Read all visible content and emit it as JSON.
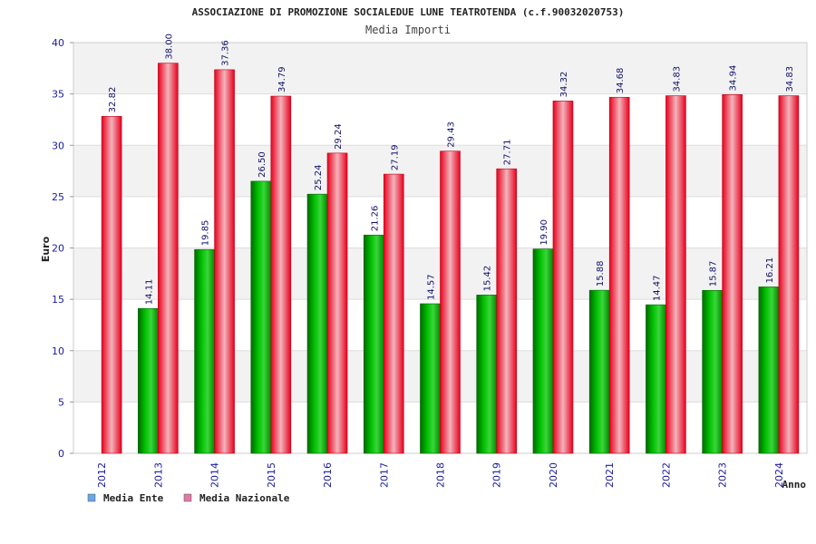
{
  "chart_data": {
    "type": "bar",
    "title": "ASSOCIAZIONE DI PROMOZIONE SOCIALEDUE LUNE TEATROTENDA (c.f.90032020753)",
    "subtitle": "Media Importi",
    "xlabel": "Anno",
    "ylabel": "Euro",
    "ylim": [
      0,
      40
    ],
    "yticks": [
      0,
      5,
      10,
      15,
      20,
      25,
      30,
      35,
      40
    ],
    "categories": [
      "2012",
      "2013",
      "2014",
      "2015",
      "2016",
      "2017",
      "2018",
      "2019",
      "2020",
      "2021",
      "2022",
      "2023",
      "2024"
    ],
    "series": [
      {
        "name": "Media Ente",
        "color": "#00b000",
        "values": [
          null,
          14.11,
          19.85,
          26.5,
          25.24,
          21.26,
          14.57,
          15.42,
          19.9,
          15.88,
          14.47,
          15.87,
          16.21
        ],
        "labels": [
          "",
          "14.11",
          "19.85",
          "26.50",
          "25.24",
          "21.26",
          "14.57",
          "15.42",
          "19.90",
          "15.88",
          "14.47",
          "15.87",
          "16.21"
        ]
      },
      {
        "name": "Media Nazionale",
        "color": "#e8001c",
        "values": [
          32.82,
          38.0,
          37.36,
          34.79,
          29.24,
          27.19,
          29.43,
          27.71,
          34.32,
          34.68,
          34.83,
          34.94,
          34.83
        ],
        "labels": [
          "32.82",
          "38.00",
          "37.36",
          "34.79",
          "29.24",
          "27.19",
          "29.43",
          "27.71",
          "34.32",
          "34.68",
          "34.83",
          "34.94",
          "34.83"
        ]
      }
    ],
    "legend": {
      "position": "bottom-left",
      "items": [
        {
          "label": "Media Ente",
          "color": "#6aa6e8"
        },
        {
          "label": "Media Nazionale",
          "color": "#e07aa8"
        }
      ]
    },
    "grid": true
  }
}
